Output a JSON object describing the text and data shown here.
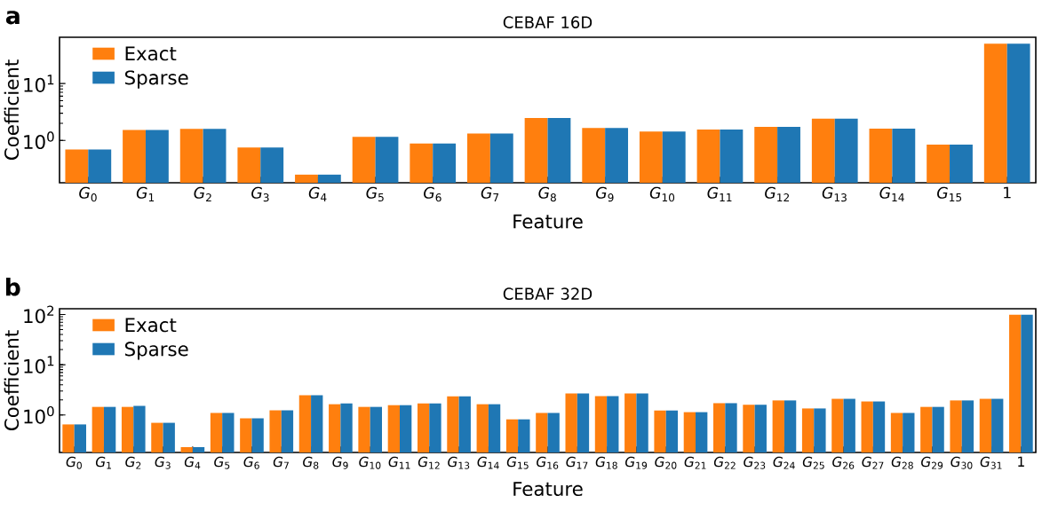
{
  "chart_data": [
    {
      "type": "bar",
      "title": "CEBAF 16D",
      "xlabel": "Feature",
      "ylabel": "Coefficient",
      "annotations": [
        "a"
      ],
      "categories": [
        "*G*$_{0}$",
        "*G*$_{1}$",
        "*G*$_{2}$",
        "*G*$_{3}$",
        "*G*$_{4}$",
        "*G*$_{5}$",
        "*G*$_{6}$",
        "*G*$_{7}$",
        "*G*$_{8}$",
        "*G*$_{9}$",
        "*G*$_{10}$",
        "*G*$_{11}$",
        "*G*$_{12}$",
        "*G*$_{13}$",
        "*G*$_{14}$",
        "*G*$_{15}$",
        "1"
      ],
      "series": [
        {
          "name": "Exact",
          "color": "#ff7f0e",
          "values": [
            0.69,
            1.53,
            1.59,
            0.75,
            0.25,
            1.15,
            0.88,
            1.32,
            2.48,
            1.66,
            1.43,
            1.55,
            1.73,
            2.4,
            1.61,
            0.84,
            50
          ]
        },
        {
          "name": "Sparse",
          "color": "#1f77b4",
          "values": [
            0.69,
            1.53,
            1.59,
            0.75,
            0.25,
            1.15,
            0.88,
            1.32,
            2.48,
            1.66,
            1.43,
            1.55,
            1.73,
            2.4,
            1.61,
            0.84,
            50
          ]
        }
      ],
      "log": "y",
      "ylim": [
        0.18,
        65
      ],
      "yticks": [
        {
          "value": 1,
          "label": "10$^{0}$"
        },
        {
          "value": 10,
          "label": "10$^{1}$"
        }
      ],
      "legend": "top left"
    },
    {
      "type": "bar",
      "title": "CEBAF 32D",
      "xlabel": "Feature",
      "ylabel": "Coefficient",
      "annotations": [
        "b"
      ],
      "categories": [
        "*G*$_{0}$",
        "*G*$_{1}$",
        "*G*$_{2}$",
        "*G*$_{3}$",
        "*G*$_{4}$",
        "*G*$_{5}$",
        "*G*$_{6}$",
        "*G*$_{7}$",
        "*G*$_{8}$",
        "*G*$_{9}$",
        "*G*$_{10}$",
        "*G*$_{11}$",
        "*G*$_{12}$",
        "*G*$_{13}$",
        "*G*$_{14}$",
        "*G*$_{15}$",
        "*G*$_{16}$",
        "*G*$_{17}$",
        "*G*$_{18}$",
        "*G*$_{19}$",
        "*G*$_{20}$",
        "*G*$_{21}$",
        "*G*$_{22}$",
        "*G*$_{23}$",
        "*G*$_{24}$",
        "*G*$_{25}$",
        "*G*$_{26}$",
        "*G*$_{27}$",
        "*G*$_{28}$",
        "*G*$_{29}$",
        "*G*$_{30}$",
        "*G*$_{31}$",
        "1"
      ],
      "series": [
        {
          "name": "Exact",
          "color": "#ff7f0e",
          "values": [
            0.65,
            1.45,
            1.45,
            0.7,
            0.23,
            1.1,
            0.86,
            1.24,
            2.47,
            1.64,
            1.45,
            1.57,
            1.7,
            2.35,
            1.64,
            0.82,
            1.1,
            2.69,
            2.38,
            2.69,
            1.23,
            1.14,
            1.72,
            1.6,
            1.95,
            1.35,
            2.1,
            1.86,
            1.1,
            1.45,
            1.95,
            2.1,
            99
          ]
        },
        {
          "name": "Sparse",
          "color": "#1f77b4",
          "values": [
            0.65,
            1.45,
            1.52,
            0.7,
            0.23,
            1.1,
            0.86,
            1.24,
            2.47,
            1.7,
            1.45,
            1.57,
            1.7,
            2.35,
            1.64,
            0.82,
            1.1,
            2.69,
            2.38,
            2.69,
            1.23,
            1.14,
            1.72,
            1.6,
            1.95,
            1.35,
            2.1,
            1.86,
            1.1,
            1.45,
            1.95,
            2.1,
            99
          ]
        }
      ],
      "log": "y",
      "ylim": [
        0.18,
        130
      ],
      "yticks": [
        {
          "value": 1,
          "label": "10$^{0}$"
        },
        {
          "value": 10,
          "label": "10$^{1}$"
        },
        {
          "value": 100,
          "label": "10$^{2}$"
        }
      ],
      "legend": "top left"
    }
  ]
}
